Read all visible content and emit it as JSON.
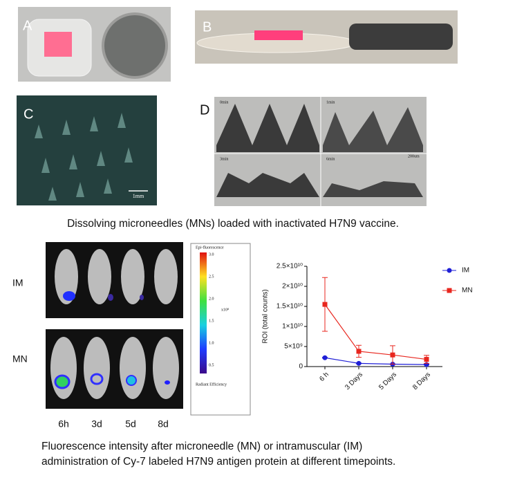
{
  "figure": {
    "panels": [
      "A",
      "B",
      "C",
      "D"
    ],
    "scale_c": "1mm",
    "d_labels": [
      "0min",
      "1min",
      "3min",
      "6min",
      "200um"
    ],
    "caption_top": "Dissolving microneedles (MNs) loaded with inactivated H7N9 vaccine.",
    "rows": [
      "IM",
      "MN"
    ],
    "timepoints": [
      "6h",
      "3d",
      "5d",
      "8d"
    ],
    "colorbar": {
      "title": "Epi-fluorescence",
      "ticks": [
        "3.0",
        "2.5",
        "2.0",
        "1.5",
        "1.0",
        "0.5"
      ],
      "unit": "x10⁸",
      "footer": "Radiant Efficiency"
    },
    "caption_bottom": [
      "Fluorescence intensity after microneedle (MN) or intramuscular (IM)",
      "administration of Cy-7 labeled H7N9 antigen protein at different timepoints."
    ]
  },
  "chart_data": {
    "type": "line",
    "ylabel": "ROI (total counts)",
    "categories": [
      "6 h",
      "3 Days",
      "5 Days",
      "8 Days"
    ],
    "ylim": [
      0,
      25000000000
    ],
    "yticks": [
      0,
      {
        "value": 5000000000,
        "label": "5×10⁹"
      },
      {
        "value": 10000000000,
        "label": "1×10¹⁰"
      },
      {
        "value": 15000000000,
        "label": "1.5×10¹⁰"
      },
      {
        "value": 20000000000,
        "label": "2×10¹⁰"
      },
      {
        "value": 25000000000,
        "label": "2.5×10¹⁰"
      }
    ],
    "series": [
      {
        "name": "IM",
        "color": "#1f1fd6",
        "marker": "circle",
        "values": [
          2200000000,
          800000000,
          600000000,
          500000000
        ],
        "errors": [
          100000000,
          100000000,
          100000000,
          100000000
        ]
      },
      {
        "name": "MN",
        "color": "#e8261e",
        "marker": "square",
        "values": [
          15500000000,
          3800000000,
          2900000000,
          1800000000
        ],
        "errors": [
          6700000000,
          1500000000,
          2300000000,
          1000000000
        ]
      }
    ]
  }
}
